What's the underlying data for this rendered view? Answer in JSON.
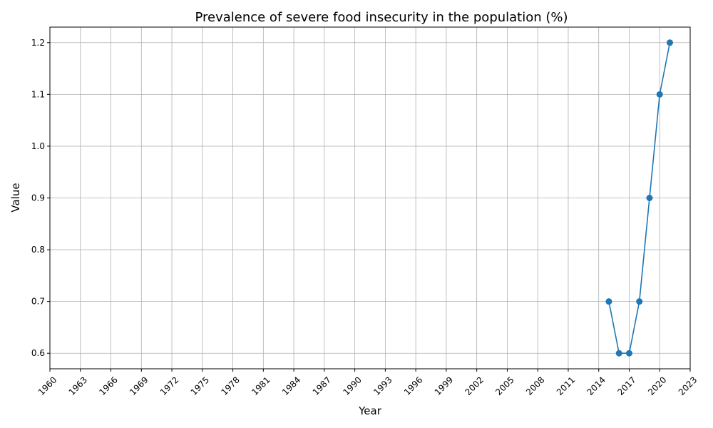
{
  "chart_data": {
    "type": "line",
    "title": "Prevalence of severe food insecurity in the population (%)",
    "xlabel": "Year",
    "ylabel": "Value",
    "xlim": [
      1960,
      2023
    ],
    "ylim": [
      0.57,
      1.23
    ],
    "xticks": [
      1960,
      1963,
      1966,
      1969,
      1972,
      1975,
      1978,
      1981,
      1984,
      1987,
      1990,
      1993,
      1996,
      1999,
      2002,
      2005,
      2008,
      2011,
      2014,
      2017,
      2020,
      2023
    ],
    "yticks": [
      0.6,
      0.7,
      0.8,
      0.9,
      1.0,
      1.1,
      1.2
    ],
    "grid": true,
    "legend": "none",
    "series": [
      {
        "color": "#1f77b4",
        "marker": "circle",
        "x": [
          2015,
          2016,
          2017,
          2018,
          2019,
          2020,
          2021
        ],
        "y": [
          0.7,
          0.6,
          0.6,
          0.7,
          0.9,
          1.1,
          1.2
        ]
      }
    ]
  }
}
